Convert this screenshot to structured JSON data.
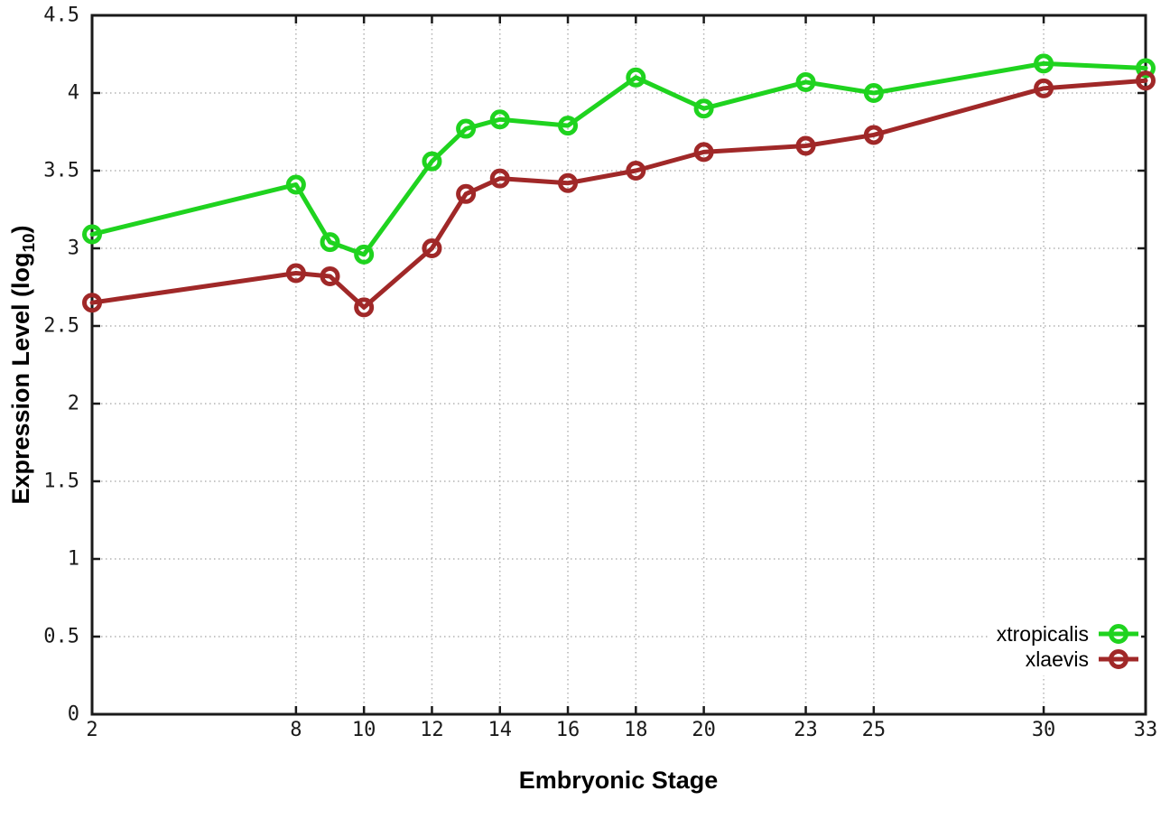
{
  "chart_data": {
    "type": "line",
    "title": "",
    "xlabel": "Embryonic Stage",
    "ylabel": "Expression Level (log10)",
    "ylabel_parts": {
      "prefix": "Expression Level (log",
      "subscript": "10",
      "suffix": ")"
    },
    "xlim": [
      2,
      33
    ],
    "ylim": [
      0,
      4.5
    ],
    "x_ticks": [
      2,
      8,
      10,
      12,
      14,
      16,
      18,
      20,
      23,
      25,
      30,
      33
    ],
    "y_ticks": [
      0,
      0.5,
      1,
      1.5,
      2,
      2.5,
      3,
      3.5,
      4,
      4.5
    ],
    "grid": true,
    "legend_position": "bottom-right",
    "x": [
      2,
      8,
      9,
      10,
      12,
      13,
      14,
      16,
      18,
      20,
      23,
      25,
      30,
      33
    ],
    "series": [
      {
        "name": "xtropicalis",
        "color": "#1fd31f",
        "values": [
          3.09,
          3.41,
          3.04,
          2.96,
          3.56,
          3.77,
          3.83,
          3.79,
          4.1,
          3.9,
          4.07,
          4.0,
          4.19,
          4.16
        ]
      },
      {
        "name": "xlaevis",
        "color": "#a02828",
        "values": [
          2.65,
          2.84,
          2.82,
          2.62,
          3.0,
          3.35,
          3.45,
          3.42,
          3.5,
          3.62,
          3.66,
          3.73,
          4.03,
          4.08
        ]
      }
    ]
  }
}
